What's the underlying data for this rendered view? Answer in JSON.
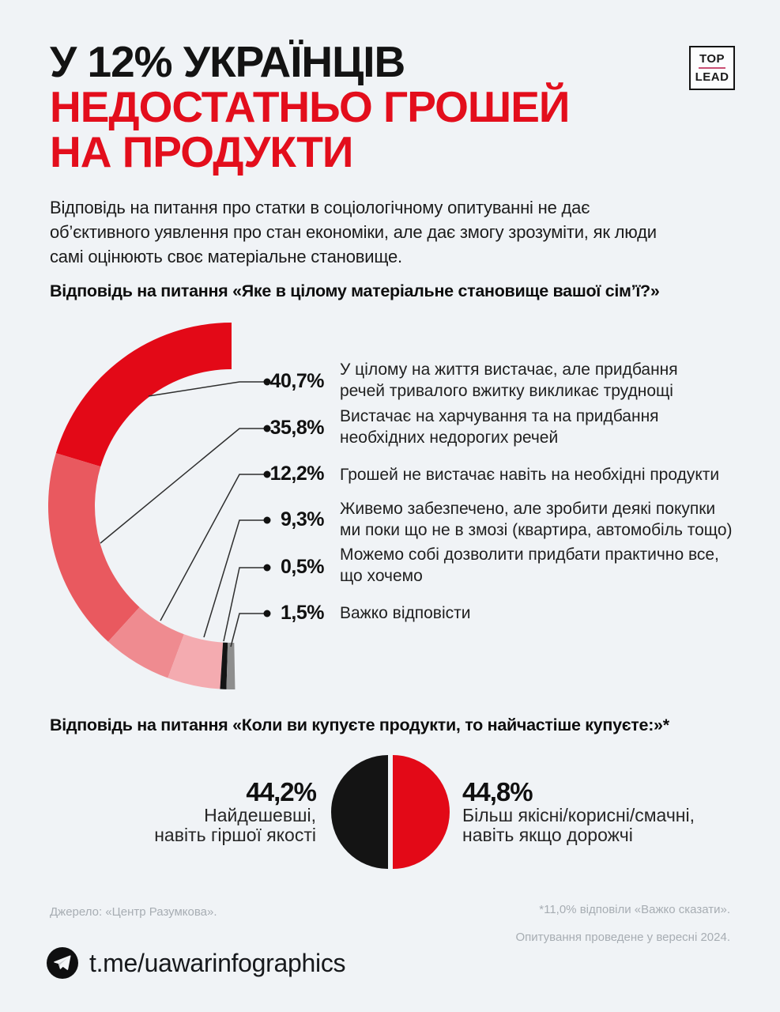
{
  "page": {
    "background": "#f0f3f6",
    "accent_red": "#e30e1c"
  },
  "header": {
    "title_line1": "У 12% УКРАЇНЦІВ",
    "title_line2": "НЕДОСТАТНЬО ГРОШЕЙ",
    "title_line3": "НА ПРОДУКТИ",
    "logo": {
      "top": "TOP",
      "lead": "LEAD"
    }
  },
  "intro": {
    "text": "Відповідь на питання про статки в соціологічному опитуванні не дає\nоб’єктивного  уявлення про стан економіки, але дає змогу зрозуміти, як люди\nсамі оцінюють своє матеріальне становище."
  },
  "question1": {
    "label": "Відповідь на питання «Яке в цілому матеріальне становище вашої сім’ї?»"
  },
  "question2": {
    "label": "Відповідь на питання «Коли ви купуєте продукти, то найчастіше купуєте:»*"
  },
  "chart_data": [
    {
      "type": "pie",
      "variant": "half-donut-left",
      "title": "Яке в цілому матеріальне становище вашої сім’ї?",
      "values": [
        40.7,
        35.8,
        12.2,
        9.3,
        0.5,
        1.5
      ],
      "display_values": [
        "40,7%",
        "35,8%",
        "12,2%",
        "9,3%",
        "0,5%",
        "1,5%"
      ],
      "labels": [
        "У цілому на життя вистачає, але придбання\nречей тривалого вжитку викликає труднощі",
        "Вистачає на харчування та на придбання\nнеобхідних недорогих речей",
        "Грошей не вистачає навіть на необхідні продукти",
        "Живемо забезпечено, але зробити деякі покупки\nми поки що не в змозі (квартира, автомобіль тощо)",
        "Можемо собі дозволити придбати практично все,\nщо хочемо",
        "Важко відповісти"
      ],
      "colors": [
        "#e30917",
        "#e9595f",
        "#ef8b90",
        "#f4abb0",
        "#141414",
        "#8e8e8e"
      ],
      "unit": "%",
      "total": 100,
      "arc_span_degrees": 180,
      "arc_start": "12 o'clock, counterclockwise to 6 o'clock",
      "legend_position": "right callouts"
    },
    {
      "type": "pie",
      "variant": "full-circle-two-halves",
      "title": "Коли ви купуєте продукти, то найчастіше купуєте:",
      "values": [
        44.2,
        44.8
      ],
      "display_values": [
        "44,2%",
        "44,8%"
      ],
      "labels": [
        "Найдешевші,\nнавіть гіршої якості",
        "Більш якісні/корисні/смачні,\nнавіть якщо дорожчі",
        "Важко сказати (не показано): 11,0%"
      ],
      "colors": [
        "#141414",
        "#e30917"
      ],
      "unit": "%",
      "legend_position": "sides"
    }
  ],
  "footer": {
    "source": "Джерело: «Центр Разумкова».",
    "note1": "*11,0% відповіли «Важко сказати».",
    "note2": "Опитування проведене у вересні 2024.",
    "telegram": "t.me/uawarinfographics"
  }
}
